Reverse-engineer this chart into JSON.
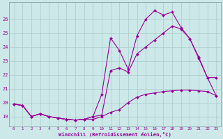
{
  "xlabel": "Windchill (Refroidissement éolien,°C)",
  "background_color": "#cce8e8",
  "grid_color": "#aacccc",
  "line_color": "#990099",
  "x_ticks": [
    0,
    1,
    2,
    3,
    4,
    5,
    6,
    7,
    8,
    9,
    10,
    11,
    12,
    13,
    14,
    15,
    16,
    17,
    18,
    19,
    20,
    21,
    22,
    23
  ],
  "y_ticks": [
    19,
    20,
    21,
    22,
    23,
    24,
    25,
    26
  ],
  "xlim": [
    -0.5,
    23.5
  ],
  "ylim": [
    18.3,
    27.2
  ],
  "series1_x": [
    0,
    1,
    2,
    3,
    4,
    5,
    6,
    7,
    8,
    9,
    10,
    11,
    12,
    13,
    14,
    15,
    16,
    17,
    18,
    19,
    20,
    21,
    22,
    23
  ],
  "series1_y": [
    19.9,
    19.8,
    19.0,
    19.2,
    19.0,
    18.9,
    18.8,
    18.75,
    18.8,
    18.8,
    19.0,
    19.3,
    19.5,
    20.0,
    20.4,
    20.6,
    20.7,
    20.8,
    20.85,
    20.9,
    20.9,
    20.85,
    20.8,
    20.5
  ],
  "series2_x": [
    0,
    1,
    2,
    3,
    4,
    5,
    6,
    7,
    8,
    9,
    10,
    11,
    12,
    13,
    14,
    15,
    16,
    17,
    18,
    19,
    20,
    21,
    22,
    23
  ],
  "series2_y": [
    19.9,
    19.8,
    19.0,
    19.2,
    19.0,
    18.9,
    18.8,
    18.75,
    18.8,
    19.0,
    20.6,
    24.65,
    23.75,
    22.4,
    24.8,
    26.0,
    26.6,
    26.3,
    26.5,
    25.4,
    24.6,
    23.2,
    21.8,
    21.8
  ],
  "series3_x": [
    0,
    1,
    2,
    3,
    4,
    5,
    6,
    7,
    8,
    9,
    10,
    11,
    12,
    13,
    14,
    15,
    16,
    17,
    18,
    19,
    20,
    21,
    22,
    23
  ],
  "series3_y": [
    19.9,
    19.8,
    19.0,
    19.2,
    19.0,
    18.9,
    18.8,
    18.75,
    18.8,
    19.0,
    19.1,
    22.3,
    22.5,
    22.2,
    23.5,
    24.0,
    24.5,
    25.0,
    25.5,
    25.3,
    24.6,
    23.3,
    21.8,
    20.5
  ]
}
